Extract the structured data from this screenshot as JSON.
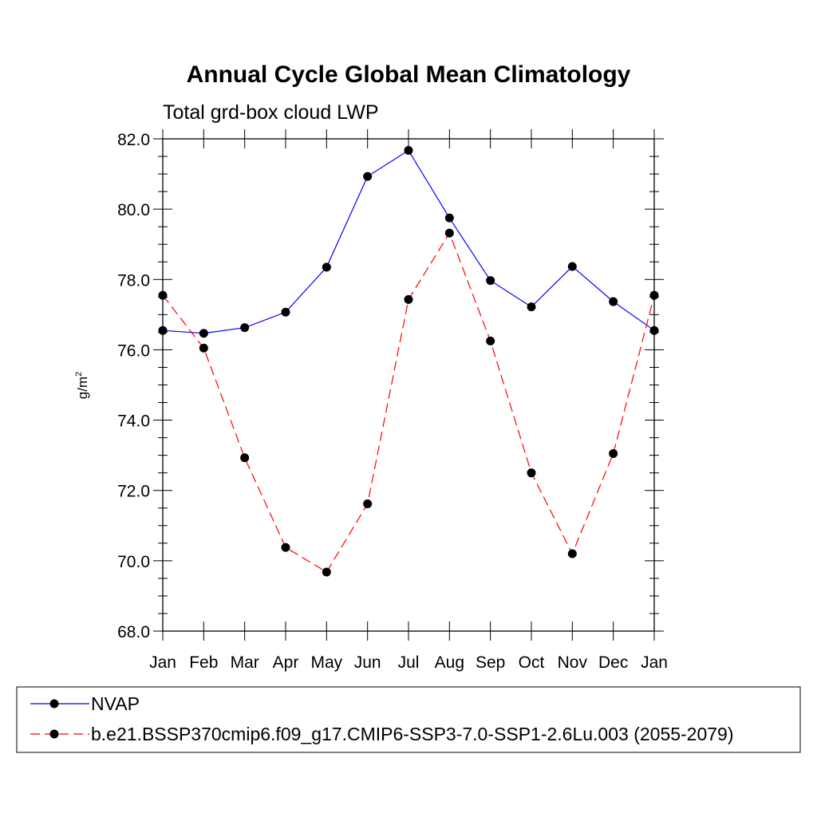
{
  "chart_data": {
    "type": "line",
    "title": "Annual Cycle Global Mean Climatology",
    "subtitle": "Total grd-box cloud LWP",
    "ylabel": "g/m",
    "ylabel_superscript": "2",
    "ylim": [
      68.0,
      82.0
    ],
    "yticks": [
      "68.0",
      "70.0",
      "72.0",
      "74.0",
      "76.0",
      "78.0",
      "80.0",
      "82.0"
    ],
    "categories": [
      "Jan",
      "Feb",
      "Mar",
      "Apr",
      "May",
      "Jun",
      "Jul",
      "Aug",
      "Sep",
      "Oct",
      "Nov",
      "Dec",
      "Jan"
    ],
    "grid": false,
    "legend_position": "bottom",
    "series": [
      {
        "name": "NVAP",
        "color": "#0000ff",
        "dashed": false,
        "values": [
          76.55,
          76.47,
          76.63,
          77.07,
          78.35,
          80.93,
          81.67,
          79.75,
          77.97,
          77.22,
          78.37,
          77.37,
          76.55
        ]
      },
      {
        "name": "b.e21.BSSP370cmip6.f09_g17.CMIP6-SSP3-7.0-SSP1-2.6Lu.003 (2055-2079)",
        "color": "#ff0000",
        "dashed": true,
        "values": [
          77.55,
          76.05,
          72.93,
          70.38,
          69.68,
          71.62,
          77.43,
          79.32,
          76.25,
          72.5,
          70.2,
          73.05,
          77.55
        ]
      }
    ]
  }
}
